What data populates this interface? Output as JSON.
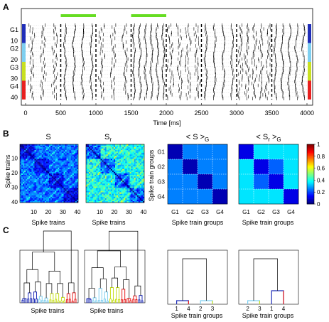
{
  "panels": {
    "a": {
      "letter": "A"
    },
    "b": {
      "letter": "B"
    },
    "c": {
      "letter": "C"
    }
  },
  "raster": {
    "xlabel": "Time [ms]",
    "x_ticks": [
      "0",
      "500",
      "1000",
      "1500",
      "2000",
      "2500",
      "3000",
      "3500",
      "4000"
    ],
    "x_tick_values": [
      0,
      500,
      1000,
      1500,
      2000,
      2500,
      3000,
      3500,
      4000
    ],
    "xlim": [
      0,
      4000
    ],
    "group_labels": [
      "G1",
      "G2",
      "G3",
      "G4"
    ],
    "row_labels": [
      "10",
      "20",
      "30",
      "40"
    ],
    "row_label_values": [
      10,
      20,
      30,
      40
    ],
    "num_trains": 40,
    "group_colors": [
      "#1f2db8",
      "#7ecff0",
      "#c8e020",
      "#e82020"
    ],
    "green_bar_color": "#66dd22",
    "green_bars": [
      [
        500,
        1000
      ],
      [
        1500,
        2000
      ]
    ],
    "event_times": [
      500,
      1000,
      1500,
      2000,
      2500,
      3000,
      3500
    ]
  },
  "matrices": {
    "titles": [
      "S",
      "S",
      "< S >",
      "< S >"
    ],
    "title_subscripts": [
      "",
      "r",
      "G",
      "G"
    ],
    "title_inner_subscript": "r",
    "train_ylabel": "Spike trains",
    "train_xlabel": "Spike trains",
    "train_x_ticks": [
      "10",
      "20",
      "30",
      "40"
    ],
    "train_y_ticks": [
      "10",
      "20",
      "30",
      "40"
    ],
    "group_ylabel": "Spike train groups",
    "group_xlabel": "Spike train groups",
    "group_ticks": [
      "G1",
      "G2",
      "G3",
      "G4"
    ],
    "group_S": [
      [
        0.05,
        0.25,
        0.25,
        0.25
      ],
      [
        0.25,
        0.05,
        0.25,
        0.25
      ],
      [
        0.25,
        0.25,
        0.05,
        0.25
      ],
      [
        0.25,
        0.25,
        0.25,
        0.05
      ]
    ],
    "group_Sr": [
      [
        0.1,
        0.35,
        0.35,
        0.35
      ],
      [
        0.35,
        0.1,
        0.22,
        0.35
      ],
      [
        0.35,
        0.22,
        0.1,
        0.35
      ],
      [
        0.35,
        0.35,
        0.35,
        0.1
      ]
    ]
  },
  "colorbar": {
    "ticks": [
      "1",
      "0.8",
      "0.6",
      "0.4",
      "0.2",
      "0"
    ],
    "range": [
      0,
      1
    ]
  },
  "dendrograms": {
    "train_xlabel": "Spike trains",
    "group_xlabel": "Spike train groups",
    "groups_S_leaves": [
      "1",
      "4",
      "2",
      "3"
    ],
    "groups_Sr_leaves": [
      "2",
      "3",
      "1",
      "4"
    ]
  }
}
